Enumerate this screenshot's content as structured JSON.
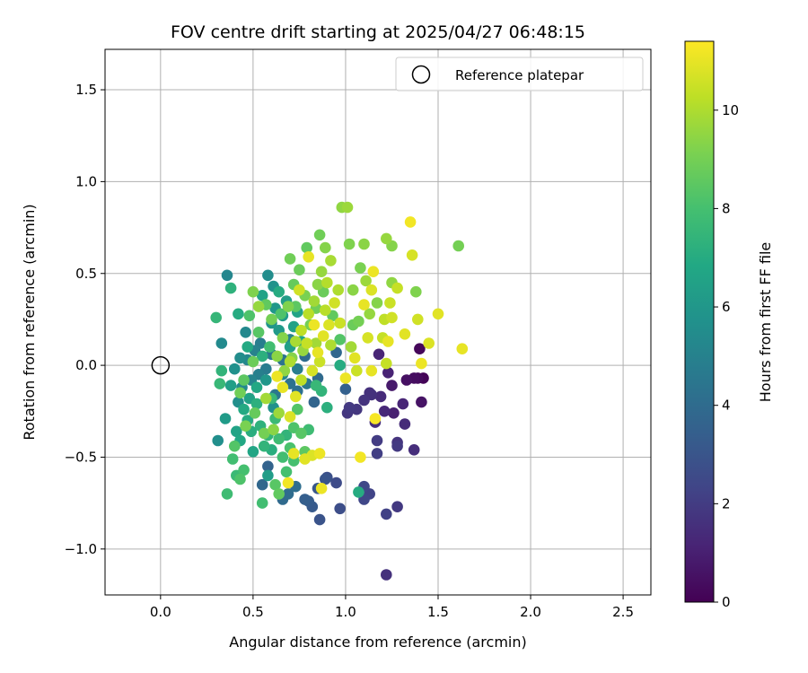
{
  "chart_data": {
    "type": "scatter",
    "title": "FOV centre drift starting at 2025/04/27 06:48:15",
    "xlabel": "Angular distance from reference (arcmin)",
    "ylabel": "Rotation from reference (arcmin)",
    "xlim": [
      -0.3,
      2.65
    ],
    "ylim": [
      -1.25,
      1.72
    ],
    "xticks": [
      0.0,
      0.5,
      1.0,
      1.5,
      2.0,
      2.5
    ],
    "xtick_labels": [
      "0.0",
      "0.5",
      "1.0",
      "1.5",
      "2.0",
      "2.5"
    ],
    "yticks": [
      -1.0,
      -0.5,
      0.0,
      0.5,
      1.0,
      1.5
    ],
    "ytick_labels": [
      "−1.0",
      "−0.5",
      "0.0",
      "0.5",
      "1.0",
      "1.5"
    ],
    "grid": true,
    "legend": {
      "placement": "top-right",
      "entries": [
        "Reference platepar"
      ]
    },
    "reference_point": {
      "x": 0.0,
      "y": 0.0
    },
    "colorbar": {
      "label": "Hours from first FF file",
      "colormap": "viridis",
      "range": [
        0,
        11.4
      ],
      "ticks": [
        0,
        2,
        4,
        6,
        8,
        10
      ],
      "tick_labels": [
        "0",
        "2",
        "4",
        "6",
        "8",
        "10"
      ]
    },
    "points": [
      {
        "x": 1.4,
        "y": 0.09,
        "h": 0.2
      },
      {
        "x": 1.42,
        "y": -0.07,
        "h": 0.1
      },
      {
        "x": 1.39,
        "y": -0.07,
        "h": 0.3
      },
      {
        "x": 1.33,
        "y": -0.08,
        "h": 0.5
      },
      {
        "x": 1.41,
        "y": -0.2,
        "h": 0.6
      },
      {
        "x": 1.25,
        "y": -0.11,
        "h": 0.8
      },
      {
        "x": 1.26,
        "y": -0.26,
        "h": 1.0
      },
      {
        "x": 1.23,
        "y": -0.04,
        "h": 1.1
      },
      {
        "x": 1.37,
        "y": -0.07,
        "h": 0.4
      },
      {
        "x": 1.18,
        "y": 0.06,
        "h": 1.2
      },
      {
        "x": 1.21,
        "y": -0.25,
        "h": 1.3
      },
      {
        "x": 1.16,
        "y": -0.31,
        "h": 1.5
      },
      {
        "x": 1.14,
        "y": -0.16,
        "h": 1.6
      },
      {
        "x": 1.1,
        "y": -0.19,
        "h": 1.7
      },
      {
        "x": 1.06,
        "y": -0.24,
        "h": 1.8
      },
      {
        "x": 1.02,
        "y": -0.23,
        "h": 1.9
      },
      {
        "x": 1.01,
        "y": -0.26,
        "h": 1.8
      },
      {
        "x": 1.13,
        "y": -0.15,
        "h": 1.6
      },
      {
        "x": 1.19,
        "y": -0.17,
        "h": 1.4
      },
      {
        "x": 1.31,
        "y": -0.21,
        "h": 1.2
      },
      {
        "x": 1.32,
        "y": -0.32,
        "h": 1.4
      },
      {
        "x": 1.37,
        "y": -0.46,
        "h": 1.5
      },
      {
        "x": 1.28,
        "y": -0.42,
        "h": 1.7
      },
      {
        "x": 1.28,
        "y": -0.44,
        "h": 1.9
      },
      {
        "x": 1.17,
        "y": -0.41,
        "h": 2.0
      },
      {
        "x": 1.17,
        "y": -0.48,
        "h": 2.1
      },
      {
        "x": 1.22,
        "y": -1.14,
        "h": 1.6
      },
      {
        "x": 1.28,
        "y": -0.77,
        "h": 1.9
      },
      {
        "x": 1.22,
        "y": -0.81,
        "h": 2.2
      },
      {
        "x": 1.13,
        "y": -0.7,
        "h": 2.3
      },
      {
        "x": 1.1,
        "y": -0.73,
        "h": 2.4
      },
      {
        "x": 1.1,
        "y": -0.66,
        "h": 2.5
      },
      {
        "x": 0.95,
        "y": -0.64,
        "h": 2.6
      },
      {
        "x": 0.97,
        "y": -0.78,
        "h": 2.7
      },
      {
        "x": 0.9,
        "y": -0.61,
        "h": 2.8
      },
      {
        "x": 0.89,
        "y": -0.62,
        "h": 3.0
      },
      {
        "x": 0.85,
        "y": -0.67,
        "h": 3.1
      },
      {
        "x": 0.86,
        "y": -0.84,
        "h": 2.9
      },
      {
        "x": 0.82,
        "y": -0.77,
        "h": 3.2
      },
      {
        "x": 0.8,
        "y": -0.74,
        "h": 3.3
      },
      {
        "x": 0.78,
        "y": -0.73,
        "h": 3.4
      },
      {
        "x": 1.0,
        "y": -0.13,
        "h": 3.5
      },
      {
        "x": 0.58,
        "y": -0.55,
        "h": 3.6
      },
      {
        "x": 0.55,
        "y": -0.65,
        "h": 3.8
      },
      {
        "x": 0.66,
        "y": -0.73,
        "h": 3.9
      },
      {
        "x": 0.69,
        "y": -0.7,
        "h": 4.0
      },
      {
        "x": 0.73,
        "y": -0.66,
        "h": 4.1
      },
      {
        "x": 0.83,
        "y": -0.2,
        "h": 3.7
      },
      {
        "x": 0.95,
        "y": 0.07,
        "h": 3.8
      },
      {
        "x": 0.85,
        "y": -0.07,
        "h": 3.9
      },
      {
        "x": 0.78,
        "y": 0.05,
        "h": 4.0
      },
      {
        "x": 0.74,
        "y": -0.14,
        "h": 4.2
      },
      {
        "x": 0.7,
        "y": -0.1,
        "h": 4.3
      },
      {
        "x": 0.66,
        "y": 0.03,
        "h": 4.4
      },
      {
        "x": 0.62,
        "y": -0.16,
        "h": 4.5
      },
      {
        "x": 0.6,
        "y": 0.06,
        "h": 4.6
      },
      {
        "x": 0.57,
        "y": -0.02,
        "h": 4.7
      },
      {
        "x": 0.54,
        "y": 0.12,
        "h": 4.8
      },
      {
        "x": 0.53,
        "y": -0.05,
        "h": 4.9
      },
      {
        "x": 0.51,
        "y": 0.08,
        "h": 5.0
      },
      {
        "x": 0.49,
        "y": -0.08,
        "h": 5.1
      },
      {
        "x": 0.47,
        "y": 0.03,
        "h": 5.2
      },
      {
        "x": 0.46,
        "y": 0.18,
        "h": 5.3
      },
      {
        "x": 0.44,
        "y": -0.12,
        "h": 5.4
      },
      {
        "x": 0.43,
        "y": 0.04,
        "h": 5.5
      },
      {
        "x": 0.42,
        "y": -0.2,
        "h": 5.6
      },
      {
        "x": 0.4,
        "y": -0.02,
        "h": 5.7
      },
      {
        "x": 0.36,
        "y": 0.49,
        "h": 5.2
      },
      {
        "x": 0.58,
        "y": 0.49,
        "h": 5.5
      },
      {
        "x": 0.61,
        "y": 0.43,
        "h": 5.8
      },
      {
        "x": 0.6,
        "y": 0.23,
        "h": 5.9
      },
      {
        "x": 0.62,
        "y": 0.31,
        "h": 6.0
      },
      {
        "x": 0.64,
        "y": 0.19,
        "h": 6.1
      },
      {
        "x": 0.66,
        "y": 0.27,
        "h": 6.2
      },
      {
        "x": 0.68,
        "y": 0.35,
        "h": 6.3
      },
      {
        "x": 0.7,
        "y": 0.1,
        "h": 6.4
      },
      {
        "x": 0.72,
        "y": 0.21,
        "h": 6.5
      },
      {
        "x": 0.74,
        "y": 0.29,
        "h": 6.6
      },
      {
        "x": 0.76,
        "y": 0.13,
        "h": 6.7
      },
      {
        "x": 0.33,
        "y": 0.12,
        "h": 5.4
      },
      {
        "x": 0.31,
        "y": -0.41,
        "h": 5.6
      },
      {
        "x": 0.35,
        "y": -0.29,
        "h": 6.2
      },
      {
        "x": 0.38,
        "y": -0.11,
        "h": 6.4
      },
      {
        "x": 0.41,
        "y": -0.36,
        "h": 6.6
      },
      {
        "x": 0.43,
        "y": -0.41,
        "h": 6.8
      },
      {
        "x": 0.45,
        "y": -0.24,
        "h": 6.9
      },
      {
        "x": 0.47,
        "y": -0.3,
        "h": 7.0
      },
      {
        "x": 0.49,
        "y": -0.36,
        "h": 7.1
      },
      {
        "x": 0.52,
        "y": -0.21,
        "h": 7.2
      },
      {
        "x": 0.54,
        "y": -0.33,
        "h": 7.3
      },
      {
        "x": 0.56,
        "y": -0.44,
        "h": 7.4
      },
      {
        "x": 0.58,
        "y": -0.38,
        "h": 7.5
      },
      {
        "x": 0.6,
        "y": -0.18,
        "h": 7.6
      },
      {
        "x": 0.62,
        "y": -0.29,
        "h": 7.7
      },
      {
        "x": 0.64,
        "y": -0.4,
        "h": 7.8
      },
      {
        "x": 0.66,
        "y": -0.5,
        "h": 7.9
      },
      {
        "x": 0.68,
        "y": -0.58,
        "h": 8.0
      },
      {
        "x": 0.7,
        "y": -0.45,
        "h": 8.1
      },
      {
        "x": 0.72,
        "y": -0.34,
        "h": 8.2
      },
      {
        "x": 0.74,
        "y": -0.24,
        "h": 8.3
      },
      {
        "x": 0.76,
        "y": -0.37,
        "h": 8.4
      },
      {
        "x": 0.78,
        "y": -0.47,
        "h": 8.5
      },
      {
        "x": 0.38,
        "y": 0.42,
        "h": 7.3
      },
      {
        "x": 0.3,
        "y": 0.26,
        "h": 7.5
      },
      {
        "x": 0.32,
        "y": -0.1,
        "h": 7.6
      },
      {
        "x": 0.33,
        "y": -0.03,
        "h": 7.4
      },
      {
        "x": 0.36,
        "y": -0.7,
        "h": 7.8
      },
      {
        "x": 0.39,
        "y": -0.51,
        "h": 7.9
      },
      {
        "x": 0.41,
        "y": -0.6,
        "h": 7.7
      },
      {
        "x": 0.43,
        "y": -0.62,
        "h": 8.2
      },
      {
        "x": 0.45,
        "y": -0.57,
        "h": 8.0
      },
      {
        "x": 0.4,
        "y": -0.44,
        "h": 8.3
      },
      {
        "x": 0.55,
        "y": -0.75,
        "h": 7.9
      },
      {
        "x": 0.62,
        "y": -0.65,
        "h": 8.4
      },
      {
        "x": 0.64,
        "y": -0.7,
        "h": 8.6
      },
      {
        "x": 1.07,
        "y": -0.69,
        "h": 7.0
      },
      {
        "x": 0.8,
        "y": -0.35,
        "h": 7.8
      },
      {
        "x": 0.84,
        "y": -0.11,
        "h": 7.6
      },
      {
        "x": 0.87,
        "y": -0.14,
        "h": 7.4
      },
      {
        "x": 0.9,
        "y": -0.23,
        "h": 7.2
      },
      {
        "x": 0.97,
        "y": 0.0,
        "h": 7.0
      },
      {
        "x": 0.93,
        "y": 0.27,
        "h": 8.6
      },
      {
        "x": 0.88,
        "y": 0.4,
        "h": 8.8
      },
      {
        "x": 0.84,
        "y": 0.31,
        "h": 8.9
      },
      {
        "x": 0.81,
        "y": 0.22,
        "h": 9.0
      },
      {
        "x": 0.78,
        "y": 0.38,
        "h": 9.1
      },
      {
        "x": 0.75,
        "y": 0.52,
        "h": 8.8
      },
      {
        "x": 0.72,
        "y": 0.44,
        "h": 8.7
      },
      {
        "x": 0.7,
        "y": 0.58,
        "h": 8.9
      },
      {
        "x": 0.69,
        "y": 0.32,
        "h": 9.2
      },
      {
        "x": 0.66,
        "y": 0.15,
        "h": 9.3
      },
      {
        "x": 0.63,
        "y": 0.05,
        "h": 9.4
      },
      {
        "x": 0.6,
        "y": 0.25,
        "h": 9.0
      },
      {
        "x": 0.57,
        "y": 0.33,
        "h": 8.6
      },
      {
        "x": 0.53,
        "y": 0.18,
        "h": 8.4
      },
      {
        "x": 0.5,
        "y": 0.02,
        "h": 8.8
      },
      {
        "x": 0.48,
        "y": 0.27,
        "h": 8.2
      },
      {
        "x": 0.45,
        "y": -0.08,
        "h": 8.5
      },
      {
        "x": 0.43,
        "y": -0.15,
        "h": 8.9
      },
      {
        "x": 0.46,
        "y": -0.33,
        "h": 9.1
      },
      {
        "x": 0.51,
        "y": -0.26,
        "h": 8.7
      },
      {
        "x": 0.56,
        "y": -0.37,
        "h": 9.0
      },
      {
        "x": 0.79,
        "y": 0.64,
        "h": 8.6
      },
      {
        "x": 0.86,
        "y": 0.71,
        "h": 8.9
      },
      {
        "x": 0.89,
        "y": 0.64,
        "h": 9.3
      },
      {
        "x": 0.98,
        "y": 0.86,
        "h": 9.5
      },
      {
        "x": 1.01,
        "y": 0.86,
        "h": 9.7
      },
      {
        "x": 1.02,
        "y": 0.66,
        "h": 9.2
      },
      {
        "x": 1.1,
        "y": 0.66,
        "h": 9.4
      },
      {
        "x": 1.22,
        "y": 0.69,
        "h": 9.6
      },
      {
        "x": 1.25,
        "y": 0.65,
        "h": 9.3
      },
      {
        "x": 1.38,
        "y": 0.4,
        "h": 9.2
      },
      {
        "x": 1.61,
        "y": 0.65,
        "h": 9.0
      },
      {
        "x": 1.25,
        "y": 0.45,
        "h": 9.5
      },
      {
        "x": 1.17,
        "y": 0.34,
        "h": 9.3
      },
      {
        "x": 1.08,
        "y": 0.53,
        "h": 9.1
      },
      {
        "x": 1.04,
        "y": 0.41,
        "h": 9.4
      },
      {
        "x": 1.07,
        "y": 0.24,
        "h": 9.0
      },
      {
        "x": 1.11,
        "y": 0.46,
        "h": 9.7
      },
      {
        "x": 1.13,
        "y": 0.28,
        "h": 9.6
      },
      {
        "x": 1.03,
        "y": 0.1,
        "h": 9.8
      },
      {
        "x": 0.96,
        "y": 0.41,
        "h": 10.0
      },
      {
        "x": 0.92,
        "y": 0.57,
        "h": 9.9
      },
      {
        "x": 0.9,
        "y": 0.45,
        "h": 10.1
      },
      {
        "x": 0.87,
        "y": 0.51,
        "h": 9.6
      },
      {
        "x": 0.83,
        "y": 0.35,
        "h": 9.8
      },
      {
        "x": 0.8,
        "y": 0.28,
        "h": 10.2
      },
      {
        "x": 0.76,
        "y": 0.19,
        "h": 10.3
      },
      {
        "x": 0.73,
        "y": 0.13,
        "h": 9.9
      },
      {
        "x": 0.7,
        "y": 0.02,
        "h": 10.0
      },
      {
        "x": 0.67,
        "y": -0.03,
        "h": 9.5
      },
      {
        "x": 0.64,
        "y": -0.26,
        "h": 9.7
      },
      {
        "x": 0.61,
        "y": -0.35,
        "h": 9.4
      },
      {
        "x": 0.57,
        "y": -0.18,
        "h": 9.8
      },
      {
        "x": 0.53,
        "y": 0.32,
        "h": 9.6
      },
      {
        "x": 0.5,
        "y": 0.4,
        "h": 9.2
      },
      {
        "x": 1.21,
        "y": 0.25,
        "h": 10.3
      },
      {
        "x": 1.24,
        "y": 0.34,
        "h": 10.5
      },
      {
        "x": 1.28,
        "y": 0.42,
        "h": 10.4
      },
      {
        "x": 1.39,
        "y": 0.25,
        "h": 10.6
      },
      {
        "x": 1.45,
        "y": 0.12,
        "h": 10.8
      },
      {
        "x": 1.5,
        "y": 0.28,
        "h": 10.9
      },
      {
        "x": 1.63,
        "y": 0.09,
        "h": 11.0
      },
      {
        "x": 1.41,
        "y": 0.01,
        "h": 11.1
      },
      {
        "x": 1.36,
        "y": 0.6,
        "h": 10.7
      },
      {
        "x": 1.35,
        "y": 0.78,
        "h": 11.2
      },
      {
        "x": 1.32,
        "y": 0.17,
        "h": 10.9
      },
      {
        "x": 1.25,
        "y": 0.26,
        "h": 10.6
      },
      {
        "x": 1.23,
        "y": 0.13,
        "h": 11.0
      },
      {
        "x": 1.2,
        "y": 0.15,
        "h": 10.4
      },
      {
        "x": 1.15,
        "y": 0.51,
        "h": 11.1
      },
      {
        "x": 1.14,
        "y": 0.41,
        "h": 10.8
      },
      {
        "x": 1.12,
        "y": 0.15,
        "h": 10.7
      },
      {
        "x": 1.1,
        "y": 0.33,
        "h": 11.0
      },
      {
        "x": 1.05,
        "y": 0.04,
        "h": 10.9
      },
      {
        "x": 1.0,
        "y": -0.07,
        "h": 11.1
      },
      {
        "x": 0.97,
        "y": 0.23,
        "h": 10.5
      },
      {
        "x": 0.94,
        "y": 0.34,
        "h": 10.6
      },
      {
        "x": 0.91,
        "y": 0.22,
        "h": 10.8
      },
      {
        "x": 0.88,
        "y": 0.16,
        "h": 10.9
      },
      {
        "x": 0.85,
        "y": 0.07,
        "h": 11.0
      },
      {
        "x": 0.82,
        "y": -0.03,
        "h": 10.7
      },
      {
        "x": 0.79,
        "y": 0.12,
        "h": 10.4
      },
      {
        "x": 0.76,
        "y": -0.08,
        "h": 10.3
      },
      {
        "x": 0.73,
        "y": -0.17,
        "h": 10.9
      },
      {
        "x": 0.7,
        "y": -0.28,
        "h": 10.8
      },
      {
        "x": 0.66,
        "y": -0.12,
        "h": 11.0
      },
      {
        "x": 0.63,
        "y": -0.06,
        "h": 11.1
      },
      {
        "x": 0.86,
        "y": -0.48,
        "h": 11.1
      },
      {
        "x": 0.82,
        "y": -0.49,
        "h": 10.8
      },
      {
        "x": 0.78,
        "y": -0.51,
        "h": 10.9
      },
      {
        "x": 0.72,
        "y": -0.48,
        "h": 11.0
      },
      {
        "x": 0.69,
        "y": -0.64,
        "h": 11.2
      },
      {
        "x": 0.87,
        "y": -0.67,
        "h": 11.1
      },
      {
        "x": 1.08,
        "y": -0.5,
        "h": 11.2
      },
      {
        "x": 1.16,
        "y": -0.29,
        "h": 11.3
      },
      {
        "x": 1.14,
        "y": -0.03,
        "h": 11.0
      },
      {
        "x": 1.22,
        "y": 0.01,
        "h": 10.4
      },
      {
        "x": 1.06,
        "y": -0.03,
        "h": 10.5
      },
      {
        "x": 0.8,
        "y": 0.59,
        "h": 11.0
      },
      {
        "x": 0.75,
        "y": 0.41,
        "h": 10.6
      },
      {
        "x": 0.83,
        "y": 0.22,
        "h": 11.1
      },
      {
        "x": 0.86,
        "y": 0.02,
        "h": 10.5
      },
      {
        "x": 0.89,
        "y": 0.3,
        "h": 10.2
      },
      {
        "x": 0.92,
        "y": 0.11,
        "h": 10.0
      },
      {
        "x": 0.84,
        "y": 0.12,
        "h": 9.8
      },
      {
        "x": 0.77,
        "y": 0.08,
        "h": 9.6
      },
      {
        "x": 0.71,
        "y": 0.04,
        "h": 9.3
      },
      {
        "x": 0.73,
        "y": 0.32,
        "h": 8.5
      },
      {
        "x": 0.65,
        "y": 0.28,
        "h": 8.2
      },
      {
        "x": 0.59,
        "y": 0.1,
        "h": 7.9
      },
      {
        "x": 0.55,
        "y": 0.05,
        "h": 7.2
      },
      {
        "x": 0.52,
        "y": -0.12,
        "h": 6.8
      },
      {
        "x": 0.48,
        "y": -0.18,
        "h": 6.5
      },
      {
        "x": 0.57,
        "y": -0.08,
        "h": 6.0
      },
      {
        "x": 0.61,
        "y": -0.23,
        "h": 5.7
      },
      {
        "x": 0.66,
        "y": -0.05,
        "h": 5.3
      },
      {
        "x": 0.7,
        "y": 0.14,
        "h": 5.0
      },
      {
        "x": 0.74,
        "y": -0.02,
        "h": 4.8
      },
      {
        "x": 0.79,
        "y": -0.1,
        "h": 4.5
      },
      {
        "x": 0.68,
        "y": -0.38,
        "h": 7.4
      },
      {
        "x": 0.72,
        "y": -0.52,
        "h": 8.0
      },
      {
        "x": 0.6,
        "y": -0.46,
        "h": 7.1
      },
      {
        "x": 0.5,
        "y": -0.47,
        "h": 6.7
      },
      {
        "x": 0.58,
        "y": -0.6,
        "h": 6.3
      },
      {
        "x": 0.47,
        "y": 0.1,
        "h": 6.9
      },
      {
        "x": 0.42,
        "y": 0.28,
        "h": 7.0
      },
      {
        "x": 0.55,
        "y": 0.38,
        "h": 6.6
      },
      {
        "x": 0.64,
        "y": 0.4,
        "h": 7.0
      },
      {
        "x": 0.85,
        "y": 0.44,
        "h": 9.4
      },
      {
        "x": 1.04,
        "y": 0.22,
        "h": 8.8
      },
      {
        "x": 0.97,
        "y": 0.14,
        "h": 8.3
      }
    ]
  }
}
